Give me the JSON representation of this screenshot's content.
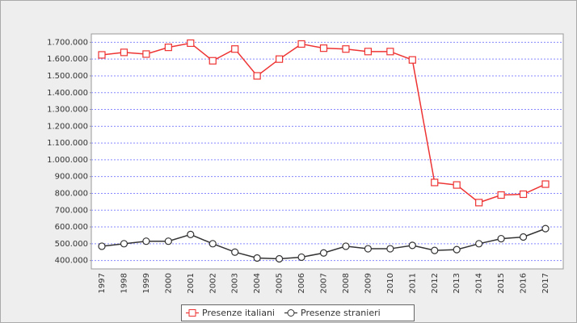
{
  "chart_data": {
    "type": "line",
    "categories": [
      "1997",
      "1998",
      "1999",
      "2000",
      "2001",
      "2002",
      "2003",
      "2004",
      "2005",
      "2006",
      "2007",
      "2008",
      "2009",
      "2010",
      "2011",
      "2012",
      "2013",
      "2014",
      "2015",
      "2016",
      "2017"
    ],
    "series": [
      {
        "name": "Presenze italiani",
        "color": "#ee3333",
        "marker": "square",
        "values": [
          1625000,
          1640000,
          1630000,
          1670000,
          1695000,
          1590000,
          1660000,
          1500000,
          1600000,
          1690000,
          1665000,
          1660000,
          1645000,
          1645000,
          1595000,
          865000,
          850000,
          745000,
          790000,
          795000,
          855000
        ]
      },
      {
        "name": "Presenze stranieri",
        "color": "#333333",
        "marker": "circle",
        "values": [
          485000,
          500000,
          515000,
          515000,
          555000,
          500000,
          450000,
          415000,
          410000,
          420000,
          445000,
          485000,
          470000,
          470000,
          490000,
          460000,
          465000,
          500000,
          530000,
          540000,
          590000
        ]
      }
    ],
    "ylim": [
      350000,
      1750000
    ],
    "yticks": [
      {
        "value": 400000,
        "label": "400.000"
      },
      {
        "value": 500000,
        "label": "500.000"
      },
      {
        "value": 600000,
        "label": "600.000"
      },
      {
        "value": 700000,
        "label": "700.000"
      },
      {
        "value": 800000,
        "label": "800.000"
      },
      {
        "value": 900000,
        "label": "900.000"
      },
      {
        "value": 1000000,
        "label": "1.000.000"
      },
      {
        "value": 1100000,
        "label": "1.100.000"
      },
      {
        "value": 1200000,
        "label": "1.200.000"
      },
      {
        "value": 1300000,
        "label": "1.300.000"
      },
      {
        "value": 1400000,
        "label": "1.400.000"
      },
      {
        "value": 1500000,
        "label": "1.500.000"
      },
      {
        "value": 1600000,
        "label": "1.600.000"
      },
      {
        "value": 1700000,
        "label": "1.700.000"
      }
    ],
    "grid": true,
    "legend": "bottom"
  }
}
